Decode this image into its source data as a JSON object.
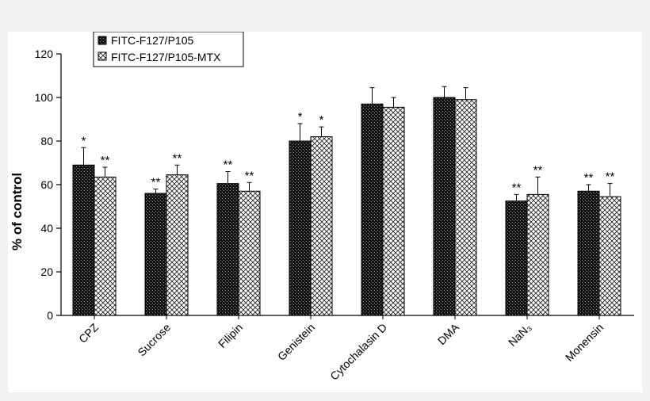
{
  "chart_data": {
    "type": "bar",
    "ylabel": "% of control",
    "xlabel": "",
    "ylim": [
      0,
      120
    ],
    "yticks": [
      0,
      20,
      40,
      60,
      80,
      100,
      120
    ],
    "categories": [
      "CPZ",
      "Sucrose",
      "Filipin",
      "Genistein",
      "Cytochalasin D",
      "DMA",
      "NaN₃",
      "Monensin"
    ],
    "legend_position": "top-left",
    "series": [
      {
        "name": "FITC-F127/P105",
        "values": [
          69,
          56,
          60.5,
          80,
          97,
          100,
          52.5,
          57
        ],
        "errors": [
          8,
          2,
          5.5,
          8,
          7.5,
          5,
          3,
          3
        ],
        "significance": [
          "*",
          "**",
          "**",
          "*",
          "",
          "",
          "**",
          "**"
        ]
      },
      {
        "name": "FITC-F127/P105-MTX",
        "values": [
          63.5,
          64.5,
          57,
          82,
          95.5,
          99,
          55.5,
          54.5
        ],
        "errors": [
          4.5,
          4.5,
          4,
          4.5,
          4.5,
          5.5,
          8,
          6
        ],
        "significance": [
          "**",
          "**",
          "**",
          "*",
          "",
          "",
          "**",
          "**"
        ]
      }
    ]
  }
}
